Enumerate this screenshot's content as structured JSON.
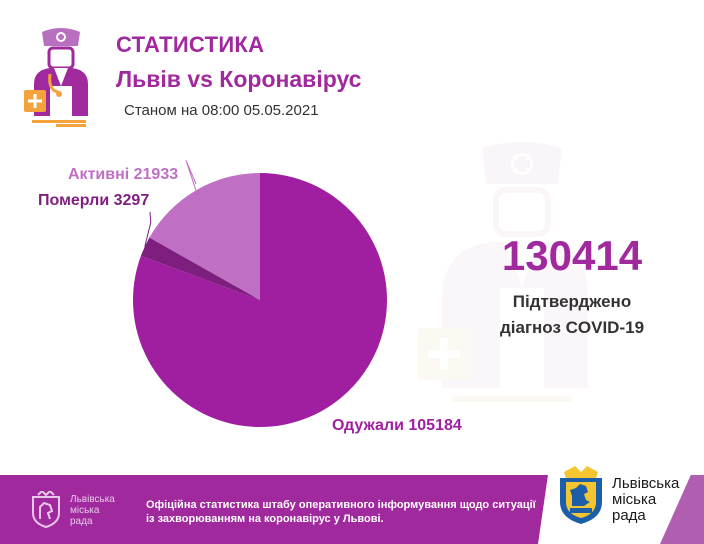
{
  "header": {
    "title": "СТАТИСТИКА",
    "subtitle": "Львів vs Коронавірус",
    "date": "Станом на 08:00 05.05.2021"
  },
  "colors": {
    "accent": "#a0299d",
    "recovered": "#a01fa0",
    "died": "#7e1e7e",
    "active": "#c070c4",
    "orange": "#f4a23c"
  },
  "chart_data": {
    "type": "pie",
    "series": [
      {
        "name": "Одужали",
        "value": 105184,
        "label": "Одужали 105184",
        "color": "#a01fa0"
      },
      {
        "name": "Померли",
        "value": 3297,
        "label": "Померли 3297",
        "color": "#7e1e7e"
      },
      {
        "name": "Активні",
        "value": 21933,
        "label": "Активні 21933",
        "color": "#c070c4"
      }
    ],
    "total": 130414
  },
  "confirmed": {
    "number": "130414",
    "line1": "Підтверджено",
    "line2": "діагноз COVID-19"
  },
  "footer": {
    "small_name": [
      "Львівська",
      "міська",
      "рада"
    ],
    "notice": "Офіційна статистика штабу оперативного інформування щодо ситуації із захворюванням на коронавірус у Львові.",
    "name": [
      "Львівська",
      "міська",
      "рада"
    ]
  },
  "icons": {
    "logo": "doctor-icon",
    "emblem": "lviv-coat-of-arms-icon"
  }
}
